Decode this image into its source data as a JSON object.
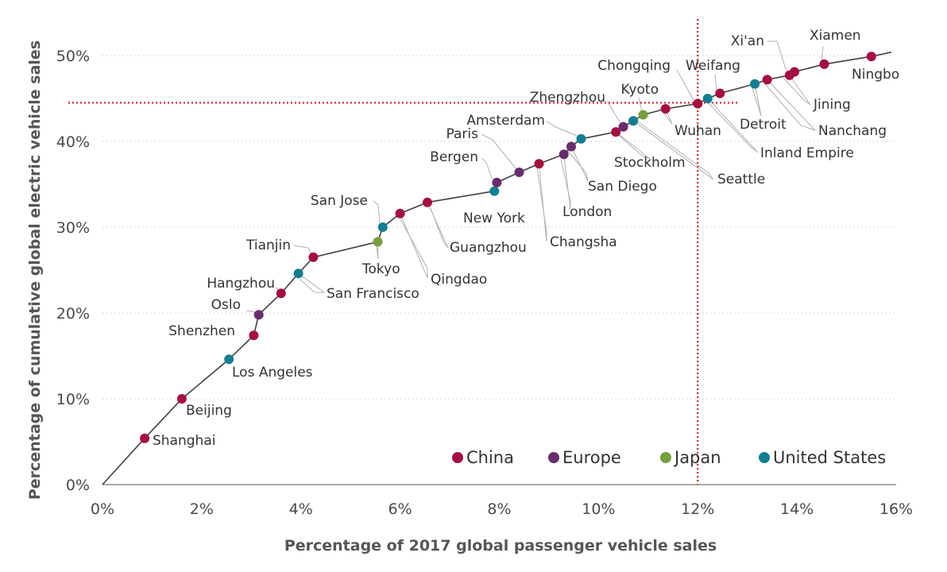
{
  "chart_data": {
    "type": "line",
    "xlabel": "Percentage of 2017 global passenger vehicle sales",
    "ylabel": "Percentage of cumulative global electric vehicle sales",
    "xlim": [
      0,
      16
    ],
    "ylim": [
      0,
      50
    ],
    "x_ticks": [
      {
        "value": 0,
        "label": "0%"
      },
      {
        "value": 2,
        "label": "2%"
      },
      {
        "value": 4,
        "label": "4%"
      },
      {
        "value": 6,
        "label": "6%"
      },
      {
        "value": 8,
        "label": "8%"
      },
      {
        "value": 10,
        "label": "10%"
      },
      {
        "value": 12,
        "label": "12%"
      },
      {
        "value": 14,
        "label": "14%"
      },
      {
        "value": 16,
        "label": "16%"
      }
    ],
    "y_ticks": [
      {
        "value": 0,
        "label": "0%"
      },
      {
        "value": 10,
        "label": "10%"
      },
      {
        "value": 20,
        "label": "20%"
      },
      {
        "value": 30,
        "label": "30%"
      },
      {
        "value": 40,
        "label": "40%"
      },
      {
        "value": 50,
        "label": "50%"
      }
    ],
    "grid": "horizontal-dotted",
    "reference_lines": {
      "x": 12,
      "y": 44.5,
      "color": "#d62728"
    },
    "legend_position": "bottom-right",
    "regions": [
      {
        "name": "China",
        "color": "#a50e3e"
      },
      {
        "name": "Europe",
        "color": "#6a2b6e"
      },
      {
        "name": "Japan",
        "color": "#76a03c"
      },
      {
        "name": "United States",
        "color": "#137e92"
      }
    ],
    "curve_end": {
      "x": 15.9,
      "y": 50.4
    },
    "points": [
      {
        "city": "Shanghai",
        "region": "China",
        "x": 0.85,
        "y": 5.4
      },
      {
        "city": "Beijing",
        "region": "China",
        "x": 1.6,
        "y": 10.0
      },
      {
        "city": "Los Angeles",
        "region": "United States",
        "x": 2.55,
        "y": 14.6
      },
      {
        "city": "Shenzhen",
        "region": "China",
        "x": 3.05,
        "y": 17.4
      },
      {
        "city": "Oslo",
        "region": "Europe",
        "x": 3.15,
        "y": 19.8
      },
      {
        "city": "Hangzhou",
        "region": "China",
        "x": 3.6,
        "y": 22.3
      },
      {
        "city": "San Francisco",
        "region": "United States",
        "x": 3.95,
        "y": 24.6
      },
      {
        "city": "Tianjin",
        "region": "China",
        "x": 4.25,
        "y": 26.5
      },
      {
        "city": "Tokyo",
        "region": "Japan",
        "x": 5.55,
        "y": 28.3
      },
      {
        "city": "San Jose",
        "region": "United States",
        "x": 5.65,
        "y": 30.0
      },
      {
        "city": "Qingdao",
        "region": "China",
        "x": 6.0,
        "y": 31.6
      },
      {
        "city": "Guangzhou",
        "region": "China",
        "x": 6.55,
        "y": 32.9
      },
      {
        "city": "New York",
        "region": "United States",
        "x": 7.9,
        "y": 34.2
      },
      {
        "city": "Bergen",
        "region": "Europe",
        "x": 7.95,
        "y": 35.2
      },
      {
        "city": "Paris",
        "region": "Europe",
        "x": 8.4,
        "y": 36.4
      },
      {
        "city": "Changsha",
        "region": "China",
        "x": 8.8,
        "y": 37.4
      },
      {
        "city": "London",
        "region": "Europe",
        "x": 9.3,
        "y": 38.5
      },
      {
        "city": "San Diego",
        "region": "Europe",
        "x": 9.45,
        "y": 39.4
      },
      {
        "city": "Amsterdam",
        "region": "United States",
        "x": 9.65,
        "y": 40.3
      },
      {
        "city": "Stockholm",
        "region": "China",
        "x": 10.35,
        "y": 41.1
      },
      {
        "city": "Zhengzhou",
        "region": "Europe",
        "x": 10.5,
        "y": 41.7
      },
      {
        "city": "Seattle",
        "region": "United States",
        "x": 10.7,
        "y": 42.4
      },
      {
        "city": "Kyoto",
        "region": "Japan",
        "x": 10.9,
        "y": 43.1
      },
      {
        "city": "Wuhan",
        "region": "China",
        "x": 11.35,
        "y": 43.8
      },
      {
        "city": "Chongqing",
        "region": "China",
        "x": 12.0,
        "y": 44.4
      },
      {
        "city": "Inland Empire",
        "region": "United States",
        "x": 12.2,
        "y": 45.0
      },
      {
        "city": "Weifang",
        "region": "China",
        "x": 12.45,
        "y": 45.6
      },
      {
        "city": "Detroit",
        "region": "United States",
        "x": 13.15,
        "y": 46.7
      },
      {
        "city": "Nanchang",
        "region": "China",
        "x": 13.4,
        "y": 47.2
      },
      {
        "city": "Jining",
        "region": "China",
        "x": 13.85,
        "y": 47.7
      },
      {
        "city": "Xi'an",
        "region": "China",
        "x": 13.95,
        "y": 48.1
      },
      {
        "city": "Xiamen",
        "region": "China",
        "x": 14.55,
        "y": 49.0
      },
      {
        "city": "Ningbo",
        "region": "China",
        "x": 15.5,
        "y": 49.9
      }
    ]
  }
}
